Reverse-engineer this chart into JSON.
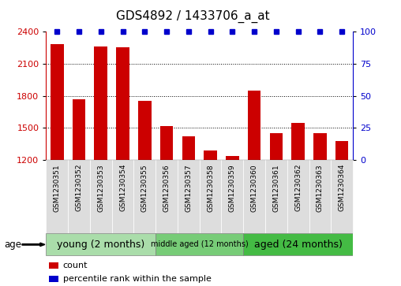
{
  "title": "GDS4892 / 1433706_a_at",
  "samples": [
    "GSM1230351",
    "GSM1230352",
    "GSM1230353",
    "GSM1230354",
    "GSM1230355",
    "GSM1230356",
    "GSM1230357",
    "GSM1230358",
    "GSM1230359",
    "GSM1230360",
    "GSM1230361",
    "GSM1230362",
    "GSM1230363",
    "GSM1230364"
  ],
  "counts": [
    2280,
    1770,
    2260,
    2250,
    1750,
    1520,
    1420,
    1290,
    1240,
    1850,
    1450,
    1550,
    1450,
    1380
  ],
  "percentile_ranks": [
    100,
    100,
    100,
    100,
    100,
    100,
    100,
    100,
    100,
    100,
    100,
    100,
    100,
    100
  ],
  "ylim_left": [
    1200,
    2400
  ],
  "ylim_right": [
    0,
    100
  ],
  "yticks_left": [
    1200,
    1500,
    1800,
    2100,
    2400
  ],
  "yticks_right": [
    0,
    25,
    50,
    75,
    100
  ],
  "bar_color": "#cc0000",
  "dot_color": "#0000cc",
  "groups": [
    {
      "label": "young (2 months)",
      "start": 0,
      "end": 5
    },
    {
      "label": "middle aged (12 months)",
      "start": 5,
      "end": 9
    },
    {
      "label": "aged (24 months)",
      "start": 9,
      "end": 14
    }
  ],
  "group_colors": [
    "#aaddaa",
    "#77cc77",
    "#44bb44"
  ],
  "age_label": "age",
  "legend_count_label": "count",
  "legend_percentile_label": "percentile rank within the sample",
  "background_color": "#ffffff",
  "bar_width": 0.6,
  "dot_size": 5,
  "grid_color": "#000000",
  "title_fontsize": 11,
  "axis_tick_fontsize": 8,
  "sample_label_fontsize": 6.5,
  "group_label_fontsize_large": 9,
  "group_label_fontsize_small": 7,
  "legend_fontsize": 8
}
